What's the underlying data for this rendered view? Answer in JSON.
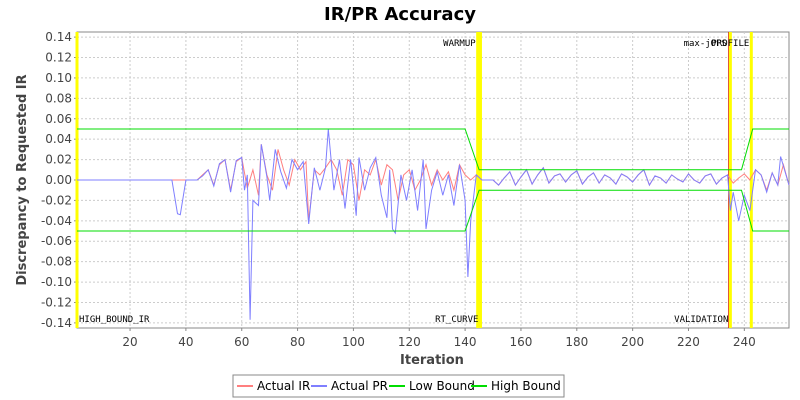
{
  "chart_data": {
    "type": "line",
    "title": "IR/PR Accuracy",
    "xlabel": "Iteration",
    "ylabel": "Discrepancy to Requested IR",
    "xlim": [
      1,
      256
    ],
    "ylim": [
      -0.145,
      0.145
    ],
    "x_ticks": [
      20,
      40,
      60,
      80,
      100,
      120,
      140,
      160,
      180,
      200,
      220,
      240
    ],
    "y_ticks": [
      -0.14,
      -0.12,
      -0.1,
      -0.08,
      -0.06,
      -0.04,
      -0.02,
      0.0,
      0.02,
      0.04,
      0.06,
      0.08,
      0.1,
      0.12,
      0.14
    ],
    "grid": true,
    "legend_position": "bottom",
    "markers": [
      {
        "label": "HIGH_BOUND_IR",
        "x": 1,
        "position": "bottom",
        "color": "#ffff00"
      },
      {
        "label": "WARMUP",
        "x": 144.5,
        "position": "top",
        "color": "#ffff00"
      },
      {
        "label": "RT_CURVE",
        "x": 145.5,
        "position": "bottom",
        "color": "#ffff00"
      },
      {
        "label": "max-jOPS",
        "x": 234.5,
        "position": "top",
        "color": "#cc0000"
      },
      {
        "label": "VALIDATION",
        "x": 235,
        "position": "bottom",
        "color": "#ffff00"
      },
      {
        "label": "PROFILE",
        "x": 242.5,
        "position": "top",
        "color": "#ffff00"
      }
    ],
    "series": [
      {
        "name": "Actual IR",
        "color": "#ff7f7f",
        "points": [
          [
            1,
            0
          ],
          [
            36,
            0
          ],
          [
            40,
            0
          ],
          [
            44,
            0
          ],
          [
            46,
            0.005
          ],
          [
            48,
            0.01
          ],
          [
            50,
            -0.005
          ],
          [
            52,
            0.015
          ],
          [
            54,
            0.02
          ],
          [
            56,
            -0.01
          ],
          [
            58,
            0.018
          ],
          [
            60,
            0.022
          ],
          [
            62,
            -0.008
          ],
          [
            64,
            0.01
          ],
          [
            66,
            -0.015
          ],
          [
            67,
            0.035
          ],
          [
            69,
            0.005
          ],
          [
            71,
            -0.01
          ],
          [
            73,
            0.03
          ],
          [
            75,
            0.01
          ],
          [
            77,
            -0.005
          ],
          [
            79,
            0.02
          ],
          [
            81,
            0.01
          ],
          [
            83,
            0.018
          ],
          [
            84,
            -0.04
          ],
          [
            86,
            0.01
          ],
          [
            88,
            0.005
          ],
          [
            90,
            0.012
          ],
          [
            92,
            0.02
          ],
          [
            94,
            0.01
          ],
          [
            96,
            -0.015
          ],
          [
            98,
            0.02
          ],
          [
            100,
            0.015
          ],
          [
            102,
            -0.02
          ],
          [
            104,
            0.01
          ],
          [
            106,
            0.005
          ],
          [
            108,
            0.02
          ],
          [
            110,
            -0.005
          ],
          [
            112,
            0.015
          ],
          [
            114,
            0.01
          ],
          [
            116,
            -0.02
          ],
          [
            118,
            0.005
          ],
          [
            120,
            0.01
          ],
          [
            122,
            -0.01
          ],
          [
            124,
            0.0
          ],
          [
            126,
            0.015
          ],
          [
            128,
            -0.005
          ],
          [
            130,
            0.01
          ],
          [
            132,
            0.0
          ],
          [
            134,
            0.008
          ],
          [
            136,
            -0.01
          ],
          [
            138,
            0.015
          ],
          [
            140,
            0.005
          ],
          [
            142,
            0.0
          ],
          [
            144,
            0.005
          ],
          [
            146,
            0.0
          ],
          [
            150,
            0
          ],
          [
            152,
            -0.005
          ],
          [
            154,
            0.002
          ],
          [
            156,
            0.008
          ],
          [
            158,
            -0.005
          ],
          [
            160,
            0.003
          ],
          [
            162,
            0.01
          ],
          [
            164,
            -0.004
          ],
          [
            166,
            0.005
          ],
          [
            168,
            0.012
          ],
          [
            170,
            -0.003
          ],
          [
            172,
            0.004
          ],
          [
            174,
            0.006
          ],
          [
            176,
            -0.002
          ],
          [
            178,
            0.005
          ],
          [
            180,
            0.009
          ],
          [
            182,
            -0.004
          ],
          [
            184,
            0.003
          ],
          [
            186,
            0.007
          ],
          [
            188,
            -0.003
          ],
          [
            190,
            0.005
          ],
          [
            192,
            0.002
          ],
          [
            194,
            -0.004
          ],
          [
            196,
            0.006
          ],
          [
            198,
            0.003
          ],
          [
            200,
            -0.002
          ],
          [
            202,
            0.005
          ],
          [
            204,
            0.01
          ],
          [
            206,
            -0.005
          ],
          [
            208,
            0.004
          ],
          [
            210,
            0.002
          ],
          [
            212,
            -0.003
          ],
          [
            214,
            0.005
          ],
          [
            216,
            0.001
          ],
          [
            218,
            -0.002
          ],
          [
            220,
            0.006
          ],
          [
            222,
            0.0
          ],
          [
            224,
            -0.003
          ],
          [
            226,
            0.004
          ],
          [
            228,
            0.006
          ],
          [
            230,
            -0.004
          ],
          [
            232,
            0.002
          ],
          [
            234,
            0.005
          ],
          [
            236,
            -0.003
          ],
          [
            238,
            0.002
          ],
          [
            240,
            0.006
          ],
          [
            242,
            0.0
          ],
          [
            244,
            0.01
          ],
          [
            246,
            0.005
          ],
          [
            248,
            -0.01
          ],
          [
            250,
            0.007
          ],
          [
            252,
            -0.005
          ],
          [
            254,
            0.015
          ],
          [
            256,
            -0.005
          ]
        ]
      },
      {
        "name": "Actual PR",
        "color": "#7f7fff",
        "points": [
          [
            1,
            0
          ],
          [
            35,
            0
          ],
          [
            37,
            -0.033
          ],
          [
            38,
            -0.034
          ],
          [
            40,
            0
          ],
          [
            44,
            0
          ],
          [
            46,
            0.004
          ],
          [
            48,
            0.01
          ],
          [
            50,
            -0.006
          ],
          [
            52,
            0.016
          ],
          [
            54,
            0.02
          ],
          [
            56,
            -0.012
          ],
          [
            58,
            0.019
          ],
          [
            60,
            0.022
          ],
          [
            61,
            -0.01
          ],
          [
            62,
            0.005
          ],
          [
            63,
            -0.137
          ],
          [
            64,
            -0.02
          ],
          [
            66,
            -0.025
          ],
          [
            67,
            0.035
          ],
          [
            69,
            0.003
          ],
          [
            70,
            -0.02
          ],
          [
            72,
            0.03
          ],
          [
            74,
            0.008
          ],
          [
            76,
            -0.008
          ],
          [
            78,
            0.02
          ],
          [
            80,
            0.01
          ],
          [
            82,
            0.018
          ],
          [
            84,
            -0.043
          ],
          [
            86,
            0.012
          ],
          [
            88,
            -0.01
          ],
          [
            90,
            0.012
          ],
          [
            91,
            0.05
          ],
          [
            93,
            -0.01
          ],
          [
            95,
            0.02
          ],
          [
            97,
            -0.028
          ],
          [
            99,
            0.02
          ],
          [
            101,
            -0.035
          ],
          [
            102,
            0.022
          ],
          [
            104,
            -0.01
          ],
          [
            106,
            0.012
          ],
          [
            108,
            0.022
          ],
          [
            110,
            -0.015
          ],
          [
            112,
            -0.037
          ],
          [
            113,
            0.01
          ],
          [
            114,
            -0.048
          ],
          [
            115,
            -0.052
          ],
          [
            117,
            0.005
          ],
          [
            119,
            -0.02
          ],
          [
            121,
            0.01
          ],
          [
            123,
            -0.03
          ],
          [
            125,
            0.02
          ],
          [
            126,
            -0.048
          ],
          [
            128,
            -0.01
          ],
          [
            130,
            0.008
          ],
          [
            132,
            -0.015
          ],
          [
            134,
            0.005
          ],
          [
            136,
            -0.025
          ],
          [
            138,
            0.015
          ],
          [
            140,
            -0.02
          ],
          [
            141,
            -0.095
          ],
          [
            142,
            -0.04
          ],
          [
            144,
            0.005
          ],
          [
            146,
            0.0
          ],
          [
            150,
            0
          ],
          [
            152,
            -0.005
          ],
          [
            154,
            0.002
          ],
          [
            156,
            0.008
          ],
          [
            158,
            -0.005
          ],
          [
            160,
            0.003
          ],
          [
            162,
            0.01
          ],
          [
            164,
            -0.004
          ],
          [
            166,
            0.005
          ],
          [
            168,
            0.012
          ],
          [
            170,
            -0.003
          ],
          [
            172,
            0.004
          ],
          [
            174,
            0.006
          ],
          [
            176,
            -0.002
          ],
          [
            178,
            0.005
          ],
          [
            180,
            0.009
          ],
          [
            182,
            -0.004
          ],
          [
            184,
            0.003
          ],
          [
            186,
            0.007
          ],
          [
            188,
            -0.003
          ],
          [
            190,
            0.005
          ],
          [
            192,
            0.002
          ],
          [
            194,
            -0.004
          ],
          [
            196,
            0.006
          ],
          [
            198,
            0.003
          ],
          [
            200,
            -0.002
          ],
          [
            202,
            0.005
          ],
          [
            204,
            0.01
          ],
          [
            206,
            -0.005
          ],
          [
            208,
            0.004
          ],
          [
            210,
            0.002
          ],
          [
            212,
            -0.003
          ],
          [
            214,
            0.005
          ],
          [
            216,
            0.001
          ],
          [
            218,
            -0.002
          ],
          [
            220,
            0.006
          ],
          [
            222,
            0.0
          ],
          [
            224,
            -0.003
          ],
          [
            226,
            0.004
          ],
          [
            228,
            0.006
          ],
          [
            230,
            -0.004
          ],
          [
            232,
            0.002
          ],
          [
            234,
            0.005
          ],
          [
            235,
            -0.03
          ],
          [
            236,
            -0.012
          ],
          [
            238,
            -0.04
          ],
          [
            240,
            -0.015
          ],
          [
            242,
            -0.03
          ],
          [
            244,
            0.01
          ],
          [
            246,
            0.005
          ],
          [
            248,
            -0.012
          ],
          [
            250,
            0.007
          ],
          [
            252,
            -0.005
          ],
          [
            253,
            0.023
          ],
          [
            256,
            -0.005
          ]
        ]
      },
      {
        "name": "Low Bound",
        "color": "#00dd00",
        "points": [
          [
            1,
            -0.05
          ],
          [
            140,
            -0.05
          ],
          [
            145,
            -0.01
          ],
          [
            235,
            -0.01
          ],
          [
            239,
            -0.01
          ],
          [
            243,
            -0.05
          ],
          [
            256,
            -0.05
          ]
        ]
      },
      {
        "name": "High Bound",
        "color": "#00dd00",
        "points": [
          [
            1,
            0.05
          ],
          [
            140,
            0.05
          ],
          [
            145,
            0.01
          ],
          [
            235,
            0.01
          ],
          [
            239,
            0.01
          ],
          [
            243,
            0.05
          ],
          [
            256,
            0.05
          ]
        ]
      }
    ]
  }
}
